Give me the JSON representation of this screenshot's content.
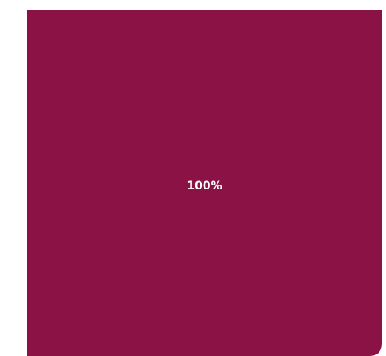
{
  "chart_data": {
    "type": "pie",
    "title": "",
    "slices": [
      {
        "label": "100%",
        "value": 100,
        "color": "#8a1245"
      }
    ],
    "legend": "none"
  }
}
